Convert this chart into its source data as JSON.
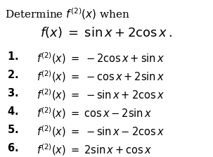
{
  "background_color": "#ffffff",
  "title_text": "Determine $f^{(2)}(x)$ when",
  "function_line": "$f(x)\\;=\\;\\sin x + 2\\cos x\\,.$",
  "options": [
    {
      "num": "\\textbf{1.}",
      "expr": "$f^{(2)}(x)\\;=\\;-2\\cos x + \\sin x$"
    },
    {
      "num": "\\textbf{2.}",
      "expr": "$f^{(2)}(x)\\;=\\;-\\cos x + 2\\sin x$"
    },
    {
      "num": "\\textbf{3.}",
      "expr": "$f^{(2)}(x)\\;=\\;-\\sin x + 2\\cos x$"
    },
    {
      "num": "\\textbf{4.}",
      "expr": "$f^{(2)}(x)\\;=\\;\\cos x - 2\\sin x$"
    },
    {
      "num": "\\textbf{5.}",
      "expr": "$f^{(2)}(x)\\;=\\;-\\sin x - 2\\cos x$"
    },
    {
      "num": "\\textbf{6.}",
      "expr": "$f^{(2)}(x)\\;=\\;2\\sin x + \\cos x$"
    }
  ],
  "text_color": "#000000",
  "accent_color": "#c0392b",
  "title_fontsize": 11,
  "func_fontsize": 13,
  "option_fontsize": 10.5,
  "figwidth": 3.03,
  "figheight": 2.23,
  "dpi": 100
}
